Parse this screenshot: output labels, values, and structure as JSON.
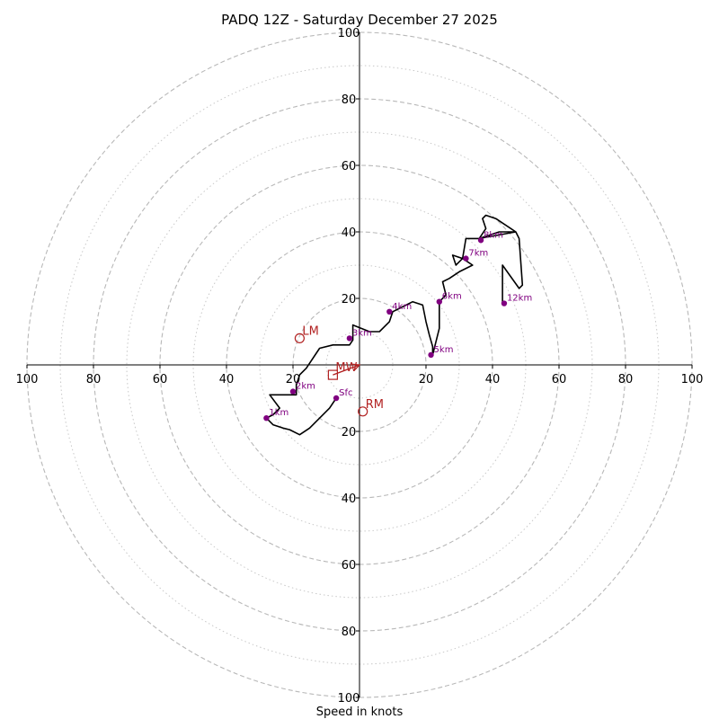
{
  "chart_data": {
    "type": "scatter",
    "title": "PADQ 12Z - Saturday December 27 2025",
    "xlabel": "Speed in knots",
    "xlim": [
      -100,
      100
    ],
    "ylim": [
      -100,
      100
    ],
    "rings_major": [
      20,
      40,
      60,
      80,
      100
    ],
    "rings_minor": [
      10,
      30,
      50,
      70,
      90
    ],
    "x_tick_labels": [
      "100",
      "80",
      "60",
      "40",
      "20",
      "20",
      "40",
      "60",
      "80",
      "100"
    ],
    "x_tick_values": [
      -100,
      -80,
      -60,
      -40,
      -20,
      20,
      40,
      60,
      80,
      100
    ],
    "y_tick_labels": [
      "100",
      "80",
      "60",
      "40",
      "20",
      "20",
      "40",
      "60",
      "80",
      "100"
    ],
    "y_tick_values": [
      100,
      80,
      60,
      40,
      20,
      -20,
      -40,
      -60,
      -80,
      -100
    ],
    "hodograph": {
      "color": "#000000",
      "points": [
        [
          -7,
          -10
        ],
        [
          -9,
          -13
        ],
        [
          -12,
          -16
        ],
        [
          -15,
          -19
        ],
        [
          -18,
          -21
        ],
        [
          -21,
          -19.5
        ],
        [
          -23,
          -19
        ],
        [
          -26,
          -18
        ],
        [
          -28,
          -16
        ],
        [
          -26,
          -15
        ],
        [
          -24,
          -13
        ],
        [
          -27,
          -9
        ],
        [
          -20,
          -9
        ],
        [
          -19,
          -9
        ],
        [
          -19,
          -6
        ],
        [
          -18,
          -3
        ],
        [
          -16,
          -1
        ],
        [
          -12,
          5
        ],
        [
          -8,
          6
        ],
        [
          -3,
          6
        ],
        [
          -2,
          7.5
        ],
        [
          -2,
          12
        ],
        [
          3,
          10
        ],
        [
          6,
          10
        ],
        [
          9,
          13
        ],
        [
          10,
          16
        ],
        [
          12,
          17
        ],
        [
          16,
          19
        ],
        [
          19,
          18
        ],
        [
          20,
          13
        ],
        [
          21,
          9
        ],
        [
          22,
          5.5
        ],
        [
          22,
          3
        ],
        [
          24,
          11
        ],
        [
          24,
          19
        ],
        [
          26,
          21
        ],
        [
          25,
          25
        ],
        [
          27,
          26
        ],
        [
          30,
          28
        ],
        [
          34,
          30
        ],
        [
          31,
          32
        ],
        [
          28,
          33
        ],
        [
          29,
          30
        ],
        [
          31,
          32
        ],
        [
          32,
          38
        ],
        [
          36,
          38
        ],
        [
          38,
          41
        ],
        [
          37,
          44
        ],
        [
          38,
          45
        ],
        [
          41,
          44
        ],
        [
          47,
          40
        ],
        [
          42,
          40
        ],
        [
          36,
          38
        ],
        [
          47,
          40
        ],
        [
          48,
          38
        ],
        [
          49,
          24
        ],
        [
          48,
          23
        ],
        [
          43,
          30
        ],
        [
          43,
          18
        ]
      ]
    },
    "height_markers": {
      "color": "#800080",
      "points": [
        {
          "label": "Sfc",
          "x": -7,
          "y": -10
        },
        {
          "label": "1km",
          "x": -28,
          "y": -16
        },
        {
          "label": "2km",
          "x": -20,
          "y": -8
        },
        {
          "label": "3km",
          "x": -3,
          "y": 8
        },
        {
          "label": "4km",
          "x": 9,
          "y": 16
        },
        {
          "label": "5km",
          "x": 21.5,
          "y": 3
        },
        {
          "label": "6km",
          "x": 24,
          "y": 19
        },
        {
          "label": "7km",
          "x": 32,
          "y": 32
        },
        {
          "label": "8km",
          "x": 36.5,
          "y": 37.5
        },
        {
          "label": "12km",
          "x": 43.5,
          "y": 18.5
        }
      ]
    },
    "motion_markers": {
      "color": "#b22222",
      "points": [
        {
          "label": "LM",
          "x": -18,
          "y": 8,
          "shape": "circle"
        },
        {
          "label": "RM",
          "x": 1,
          "y": -14,
          "shape": "circle"
        },
        {
          "label": "MW",
          "x": -8,
          "y": -3,
          "shape": "square"
        }
      ],
      "arrow": {
        "from": [
          -8,
          -3
        ],
        "to": [
          0,
          0
        ]
      }
    }
  }
}
